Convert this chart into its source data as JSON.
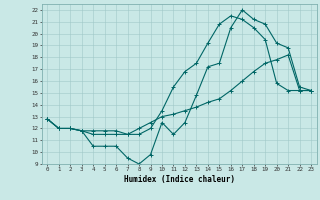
{
  "xlabel": "Humidex (Indice chaleur)",
  "xlim": [
    -0.5,
    23.5
  ],
  "ylim": [
    9,
    22.5
  ],
  "yticks": [
    9,
    10,
    11,
    12,
    13,
    14,
    15,
    16,
    17,
    18,
    19,
    20,
    21,
    22
  ],
  "xticks": [
    0,
    1,
    2,
    3,
    4,
    5,
    6,
    7,
    8,
    9,
    10,
    11,
    12,
    13,
    14,
    15,
    16,
    17,
    18,
    19,
    20,
    21,
    22,
    23
  ],
  "bg_color": "#c9e8e6",
  "line_color": "#006666",
  "line1_x": [
    0,
    1,
    2,
    3,
    4,
    5,
    6,
    7,
    8,
    9,
    10,
    11,
    12,
    13,
    14,
    15,
    16,
    17,
    18,
    19,
    20,
    21,
    22,
    23
  ],
  "line1_y": [
    12.8,
    12.0,
    12.0,
    11.8,
    10.5,
    10.5,
    10.5,
    9.5,
    9.0,
    9.8,
    12.5,
    11.5,
    12.5,
    14.8,
    17.2,
    17.5,
    20.5,
    22.0,
    21.2,
    20.8,
    19.2,
    18.8,
    15.5,
    15.2
  ],
  "line2_x": [
    0,
    1,
    2,
    3,
    4,
    5,
    6,
    7,
    8,
    9,
    10,
    11,
    12,
    13,
    14,
    15,
    16,
    17,
    18,
    19,
    20,
    21,
    22,
    23
  ],
  "line2_y": [
    12.8,
    12.0,
    12.0,
    11.8,
    11.5,
    11.5,
    11.5,
    11.5,
    12.0,
    12.5,
    13.0,
    13.2,
    13.5,
    13.8,
    14.2,
    14.5,
    15.2,
    16.0,
    16.8,
    17.5,
    17.8,
    18.2,
    15.2,
    15.2
  ],
  "line3_x": [
    0,
    1,
    2,
    3,
    4,
    5,
    6,
    7,
    8,
    9,
    10,
    11,
    12,
    13,
    14,
    15,
    16,
    17,
    18,
    19,
    20,
    21,
    22,
    23
  ],
  "line3_y": [
    12.8,
    12.0,
    12.0,
    11.8,
    11.8,
    11.8,
    11.8,
    11.5,
    11.5,
    12.0,
    13.5,
    15.5,
    16.8,
    17.5,
    19.2,
    20.8,
    21.5,
    21.2,
    20.5,
    19.5,
    15.8,
    15.2,
    15.2,
    15.2
  ],
  "xlabel_fontsize": 5.5,
  "tick_fontsize": 4.2,
  "grid_color": "#a0c8c8",
  "spine_color": "#80b0b0"
}
